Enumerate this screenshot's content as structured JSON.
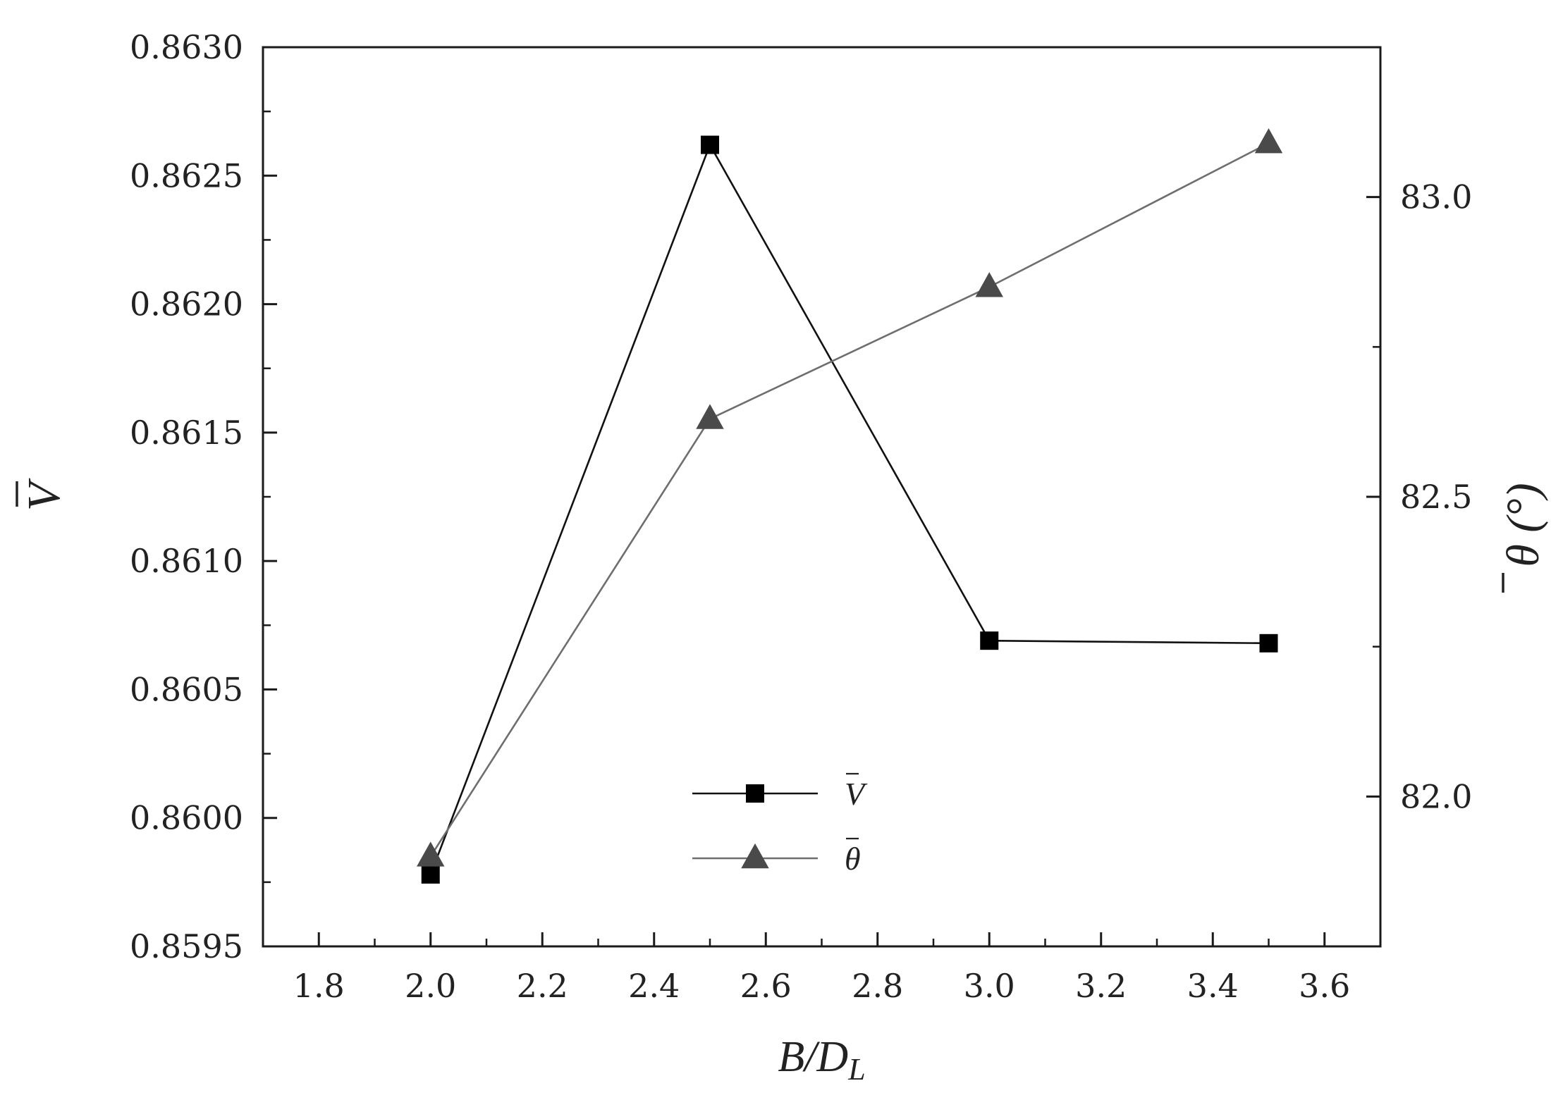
{
  "chart_data": {
    "type": "line",
    "x": [
      2.0,
      2.5,
      3.0,
      3.5
    ],
    "xlabel": "B/D",
    "xlabel_sub": "L",
    "xlim": [
      1.7,
      3.7
    ],
    "xticks": [
      1.8,
      2.0,
      2.2,
      2.4,
      2.6,
      2.8,
      3.0,
      3.2,
      3.4,
      3.6
    ],
    "xtick_labels": [
      "1.8",
      "2.0",
      "2.2",
      "2.4",
      "2.6",
      "2.8",
      "3.0",
      "3.2",
      "3.4",
      "3.6"
    ],
    "y_left": {
      "label": "V",
      "lim": [
        0.8595,
        0.863
      ],
      "ticks": [
        0.8595,
        0.86,
        0.8605,
        0.861,
        0.8615,
        0.862,
        0.8625,
        0.863
      ],
      "tick_labels": [
        "0.8595",
        "0.8600",
        "0.8605",
        "0.8610",
        "0.8615",
        "0.8620",
        "0.8625",
        "0.8630"
      ]
    },
    "y_right": {
      "label": "θ (°)",
      "lim": [
        81.75,
        83.25
      ],
      "ticks": [
        82.0,
        82.5,
        83.0
      ],
      "tick_labels": [
        "82.0",
        "82.5",
        "83.0"
      ]
    },
    "series": [
      {
        "name": "V",
        "axis": "left",
        "marker": "square",
        "color": "#000000",
        "line_color": "#111111",
        "values": [
          0.85978,
          0.86262,
          0.86069,
          0.86068
        ]
      },
      {
        "name": "θ",
        "axis": "right",
        "marker": "triangle",
        "color": "#4a4a4a",
        "line_color": "#6e6e6e",
        "values": [
          81.9,
          82.63,
          82.85,
          83.09
        ]
      }
    ],
    "grid": false,
    "legend_position": "lower-center"
  }
}
